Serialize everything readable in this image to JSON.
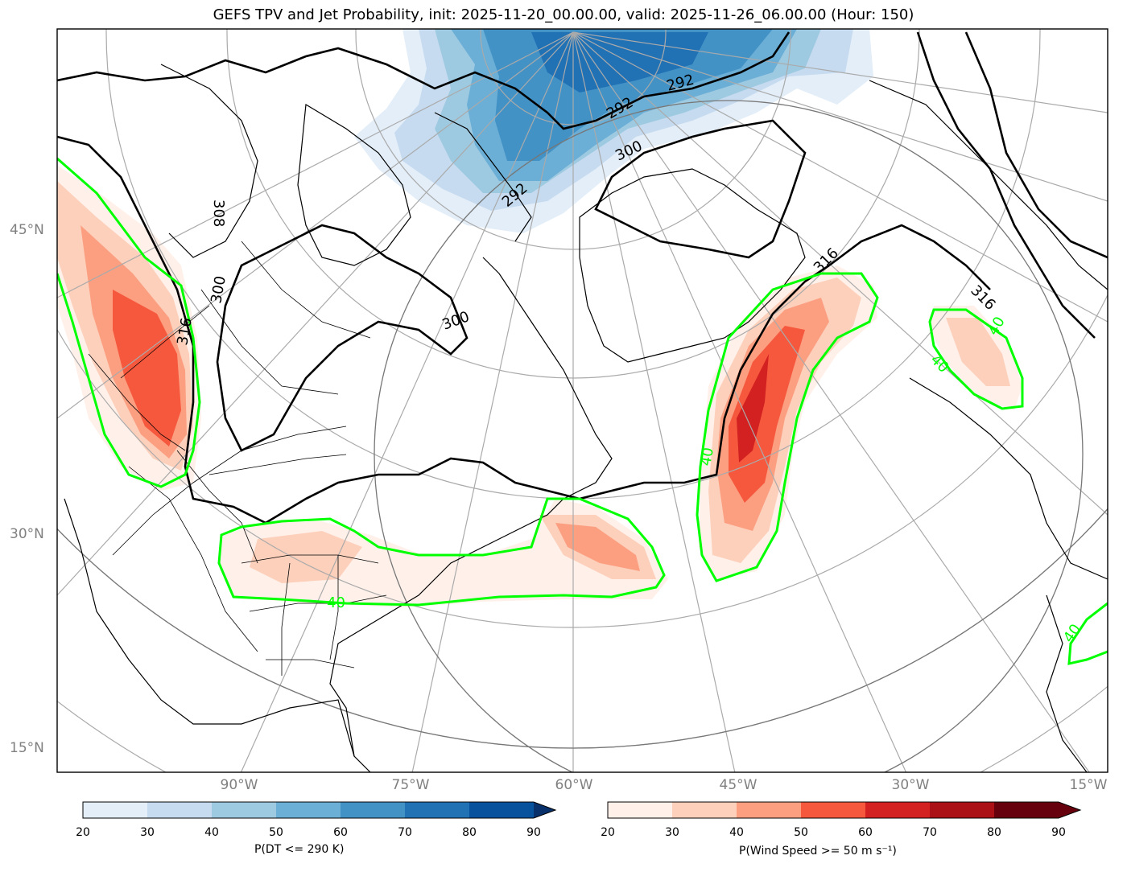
{
  "title": "GEFS TPV and Jet Probability, init: 2025-11-20_00.00.00, valid: 2025-11-26_06.00.00 (Hour: 150)",
  "lat_labels": [
    "45°N",
    "30°N",
    "15°N"
  ],
  "lon_labels": [
    "90°W",
    "75°W",
    "60°W",
    "45°W",
    "30°W",
    "15°W"
  ],
  "contour_labels": {
    "theta": [
      "292",
      "292",
      "292",
      "300",
      "300",
      "300",
      "308",
      "316",
      "316",
      "316"
    ],
    "jet": [
      "40",
      "40",
      "40",
      "40",
      "40"
    ]
  },
  "colorbar_dt": {
    "label": "P(DT <= 290 K)",
    "ticks": [
      "20",
      "30",
      "40",
      "50",
      "60",
      "70",
      "80",
      "90"
    ],
    "colors": [
      "#e3eef9",
      "#c6dbef",
      "#9ecae1",
      "#6baed6",
      "#4292c6",
      "#2171b5",
      "#08519c",
      "#08306b"
    ]
  },
  "colorbar_wind": {
    "label": "P(Wind Speed >= 50 m s⁻¹)",
    "ticks": [
      "20",
      "30",
      "40",
      "50",
      "60",
      "70",
      "80",
      "90"
    ],
    "colors": [
      "#fff1ea",
      "#fdd0bc",
      "#fc9f81",
      "#f6583e",
      "#d32020",
      "#aa1016",
      "#67000d"
    ]
  },
  "colors": {
    "jet_contour": "#00ff00",
    "theta_contour": "#000000",
    "grid": "#aaaaaa"
  }
}
